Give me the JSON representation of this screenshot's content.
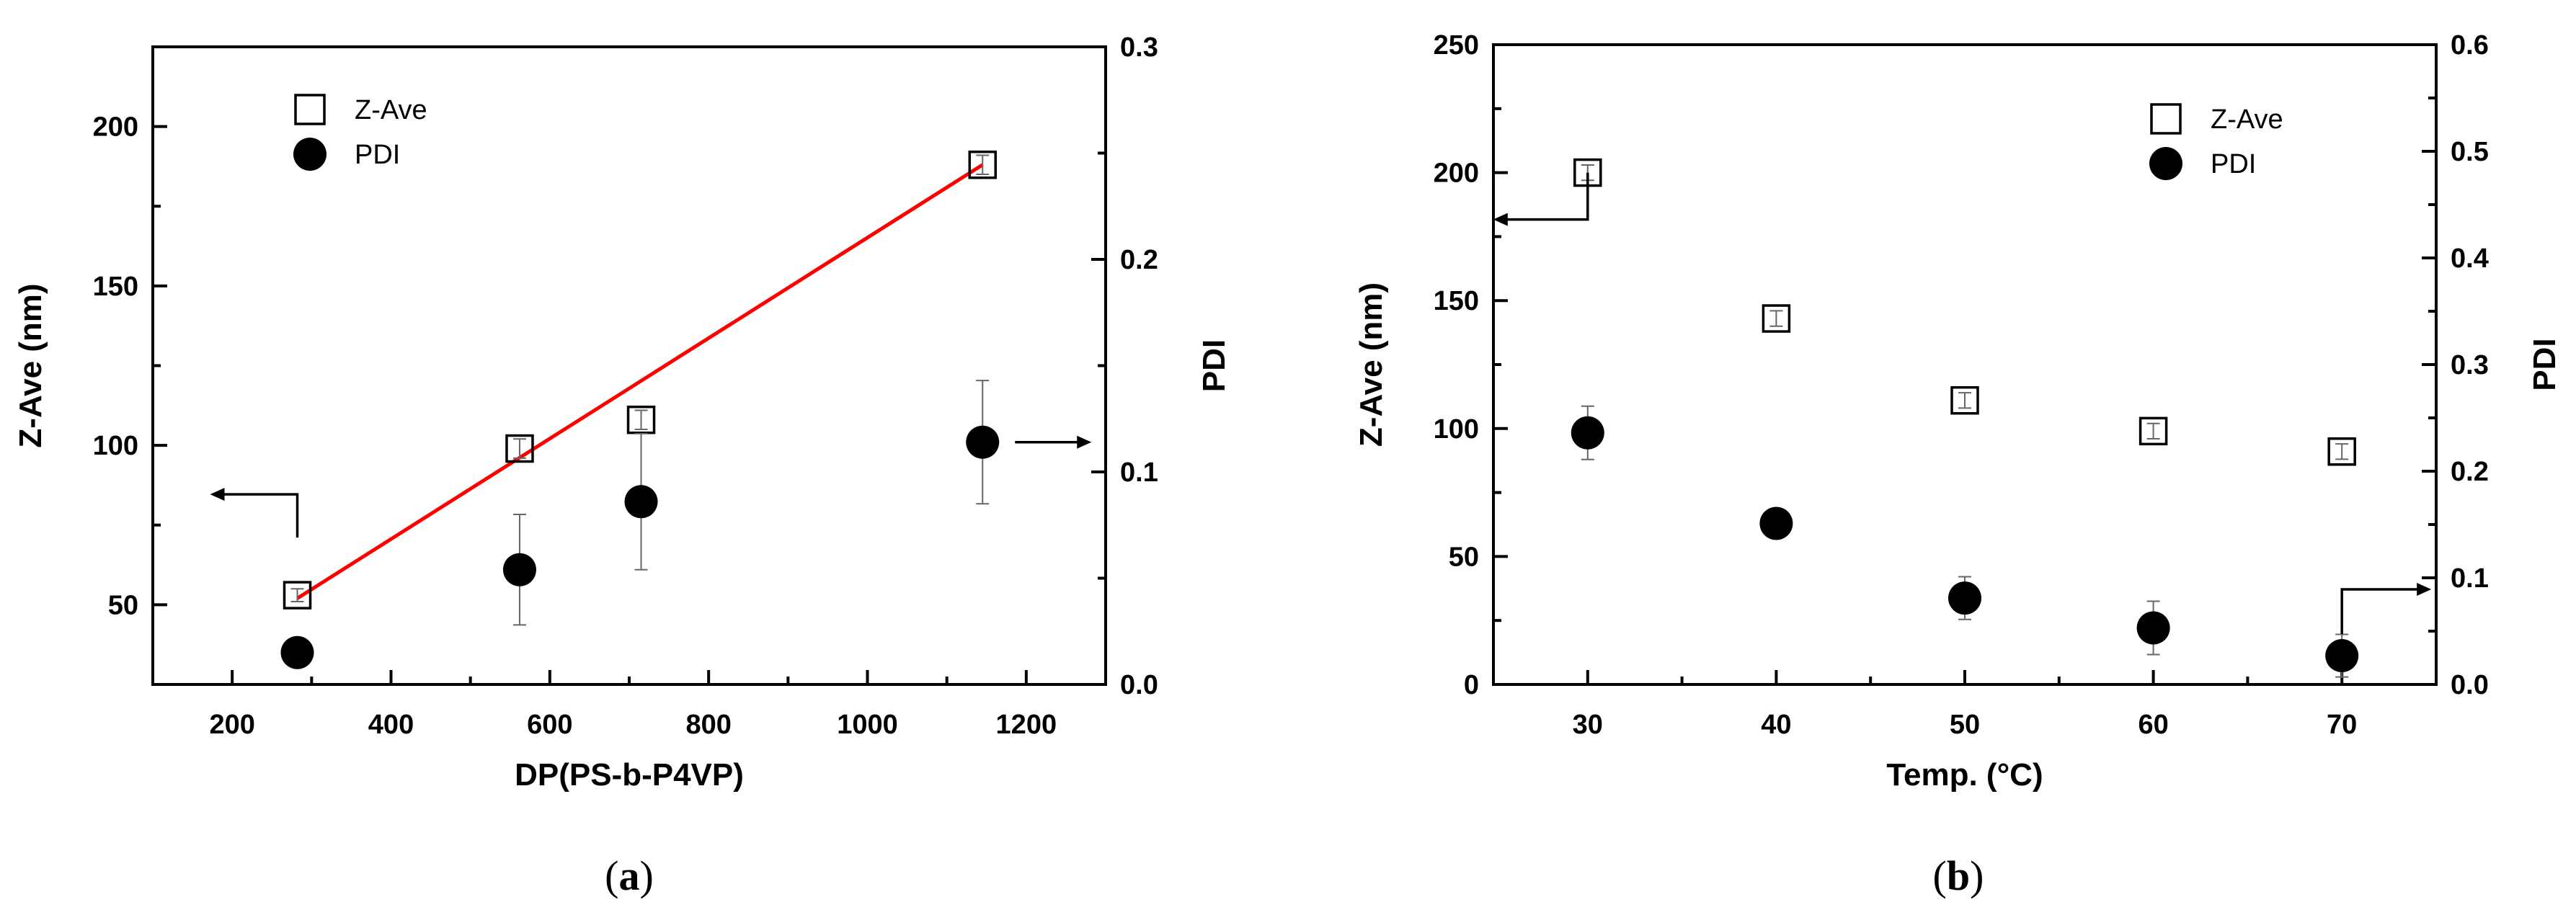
{
  "chart_data": [
    {
      "type": "scatter",
      "caption": "(a)",
      "xlabel": "DP(PS-b-P4VP)",
      "ylabel": "Z-Ave (nm)",
      "y2label": "PDI",
      "xlim": [
        100,
        1300
      ],
      "ylim": [
        25,
        225
      ],
      "y2lim": [
        0,
        0.3
      ],
      "xticks": [
        200,
        400,
        600,
        800,
        1000,
        1200
      ],
      "yticks": [
        50,
        100,
        150,
        200
      ],
      "y2ticks": [
        0.0,
        0.1,
        0.2,
        0.3
      ],
      "xtick_labels": [
        "200",
        "400",
        "600",
        "800",
        "1000",
        "1200"
      ],
      "ytick_labels": [
        "50",
        "100",
        "150",
        "200"
      ],
      "y2tick_labels": [
        "0.0",
        "0.1",
        "0.2",
        "0.3"
      ],
      "grid": false,
      "legend_position": "top-left",
      "series": [
        {
          "name": "Z-Ave",
          "marker": "open-square",
          "axis": "left",
          "x": [
            282,
            562,
            715,
            1145
          ],
          "y": [
            53,
            99,
            108,
            188
          ],
          "err": [
            2,
            3,
            3,
            3
          ]
        },
        {
          "name": "PDI",
          "marker": "filled-circle",
          "axis": "right",
          "x": [
            282,
            562,
            715,
            1145
          ],
          "y": [
            0.015,
            0.054,
            0.086,
            0.114
          ],
          "err": [
            0.006,
            0.026,
            0.032,
            0.029
          ]
        }
      ],
      "fit_line": {
        "color": "#ff0000",
        "x": [
          282,
          1145
        ],
        "y": [
          52,
          188
        ]
      },
      "arrows": [
        {
          "series": "Z-Ave",
          "direction": "left"
        },
        {
          "series": "PDI",
          "direction": "right"
        }
      ]
    },
    {
      "type": "scatter",
      "caption": "(b)",
      "xlabel": "Temp. (°C)",
      "ylabel": "Z-Ave (nm)",
      "y2label": "PDI",
      "xlim": [
        25,
        75
      ],
      "ylim": [
        0,
        250
      ],
      "y2lim": [
        0,
        0.6
      ],
      "xticks": [
        30,
        40,
        50,
        60,
        70
      ],
      "yticks": [
        0,
        50,
        100,
        150,
        200,
        250
      ],
      "y2ticks": [
        0.0,
        0.1,
        0.2,
        0.3,
        0.4,
        0.5,
        0.6
      ],
      "xtick_labels": [
        "30",
        "40",
        "50",
        "60",
        "70"
      ],
      "ytick_labels": [
        "0",
        "50",
        "100",
        "150",
        "200",
        "250"
      ],
      "y2tick_labels": [
        "0.0",
        "0.1",
        "0.2",
        "0.3",
        "0.4",
        "0.5",
        "0.6"
      ],
      "grid": false,
      "legend_position": "top-right",
      "series": [
        {
          "name": "Z-Ave",
          "marker": "open-square",
          "axis": "left",
          "x": [
            30,
            40,
            50,
            60,
            70
          ],
          "y": [
            200,
            143,
            111,
            99,
            91
          ],
          "err": [
            3,
            3,
            3,
            3,
            3
          ]
        },
        {
          "name": "PDI",
          "marker": "filled-circle",
          "axis": "right",
          "x": [
            30,
            40,
            50,
            60,
            70
          ],
          "y": [
            0.236,
            0.151,
            0.081,
            0.053,
            0.027
          ],
          "err": [
            0.025,
            0.008,
            0.02,
            0.025,
            0.02
          ]
        }
      ],
      "arrows": [
        {
          "series": "Z-Ave",
          "direction": "left"
        },
        {
          "series": "PDI",
          "direction": "right"
        }
      ]
    }
  ]
}
